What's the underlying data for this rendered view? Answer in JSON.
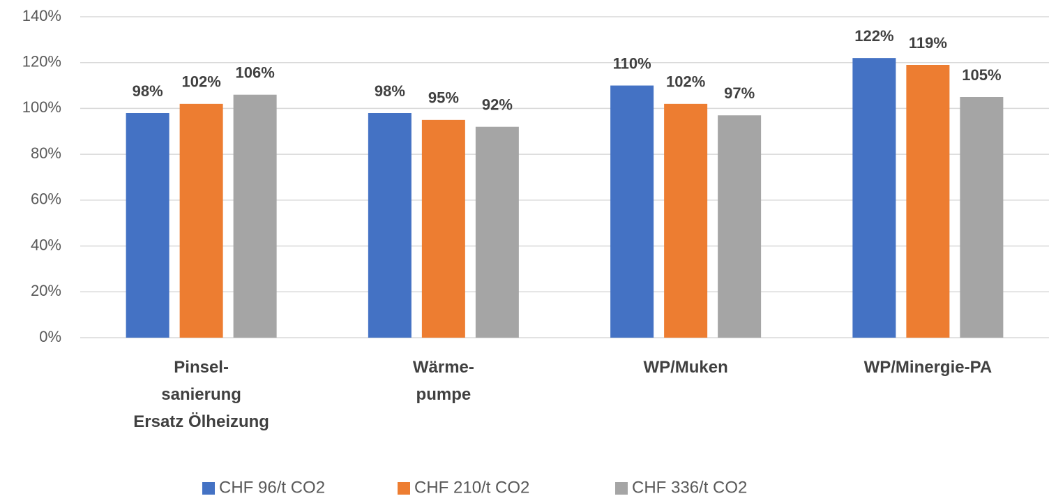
{
  "chart_data": {
    "type": "bar",
    "categories": [
      "Pinsel-\nsanierung\nErsatz Ölheizung",
      "Wärme-\npumpe",
      "WP/Muken",
      "WP/Minergie-PA"
    ],
    "series": [
      {
        "name": "CHF 96/t CO2",
        "color": "#4472c4",
        "values": [
          98,
          98,
          110,
          122
        ],
        "value_labels": [
          "98%",
          "98%",
          "110%",
          "122%"
        ]
      },
      {
        "name": "CHF 210/t CO2",
        "color": "#ed7d31",
        "values": [
          102,
          95,
          102,
          119
        ],
        "value_labels": [
          "102%",
          "95%",
          "102%",
          "119%"
        ]
      },
      {
        "name": "CHF 336/t CO2",
        "color": "#a5a5a5",
        "values": [
          106,
          92,
          97,
          105
        ],
        "value_labels": [
          "106%",
          "92%",
          "97%",
          "105%"
        ]
      }
    ],
    "ylim": [
      0,
      140
    ],
    "yticks": [
      {
        "value": 0,
        "label": "0%"
      },
      {
        "value": 20,
        "label": "20%"
      },
      {
        "value": 40,
        "label": "40%"
      },
      {
        "value": 60,
        "label": "60%"
      },
      {
        "value": 80,
        "label": "80%"
      },
      {
        "value": 100,
        "label": "100%"
      },
      {
        "value": 120,
        "label": "120%"
      },
      {
        "value": 140,
        "label": "140%"
      }
    ],
    "grid": true,
    "legend": "bottom"
  }
}
